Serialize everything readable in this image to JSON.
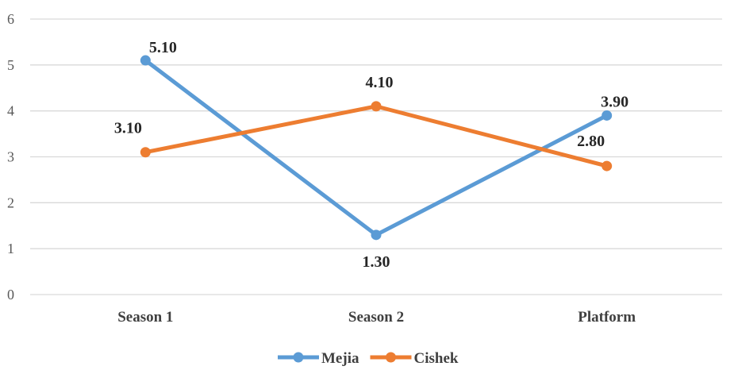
{
  "chart_data": {
    "type": "line",
    "categories": [
      "Season 1",
      "Season 2",
      "Platform"
    ],
    "ylim": [
      0,
      6
    ],
    "yticks": [
      0,
      1,
      2,
      3,
      4,
      5,
      6
    ],
    "grid": true,
    "legend_position": "bottom",
    "series": [
      {
        "name": "Mejia",
        "values": [
          5.1,
          1.3,
          3.9
        ],
        "labels": [
          "5.10",
          "1.30",
          "3.90"
        ],
        "color": "#5B9BD5"
      },
      {
        "name": "Cishek",
        "values": [
          3.1,
          4.1,
          2.8
        ],
        "labels": [
          "3.10",
          "4.10",
          "2.80"
        ],
        "color": "#ED7D31"
      }
    ]
  }
}
